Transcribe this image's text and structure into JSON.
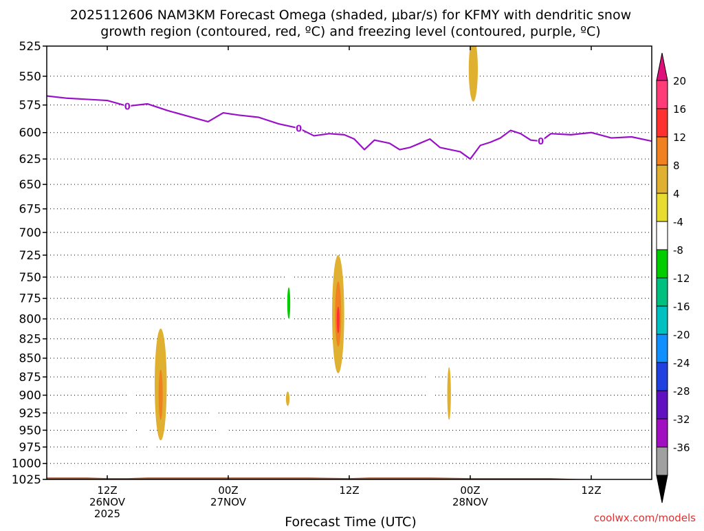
{
  "chart_data": {
    "type": "heatmap",
    "title_lines": [
      "2025112606 NAM3KM Forecast Omega (shaded, μbar/s) for KFMY with dendritic snow",
      "growth region (contoured, red, ºC) and freezing level (contoured, purple, ºC)"
    ],
    "xlabel": "Forecast Time (UTC)",
    "credit": "coolwx.com/models",
    "y_axis": {
      "scale": "pressure-log",
      "range": [
        525,
        1025
      ],
      "ticks": [
        525,
        550,
        575,
        600,
        625,
        650,
        675,
        700,
        725,
        750,
        775,
        800,
        825,
        850,
        875,
        900,
        925,
        950,
        975,
        1000,
        1025
      ],
      "grid": true
    },
    "x_axis": {
      "range_hours": [
        6,
        66
      ],
      "ticks": [
        {
          "hour": 12,
          "lines": [
            "12Z",
            "26NOV",
            "2025"
          ]
        },
        {
          "hour": 24,
          "lines": [
            "00Z",
            "27NOV"
          ]
        },
        {
          "hour": 36,
          "lines": [
            "12Z",
            ""
          ]
        },
        {
          "hour": 48,
          "lines": [
            "00Z",
            "28NOV"
          ]
        },
        {
          "hour": 60,
          "lines": [
            "12Z",
            ""
          ]
        }
      ],
      "grid": false
    },
    "colorbar": {
      "labels": [
        "20",
        "16",
        "12",
        "8",
        "4",
        "-4",
        "-8",
        "-12",
        "-16",
        "-20",
        "-24",
        "-28",
        "-32",
        "-36"
      ],
      "bins": [
        "#ff3c78",
        "#ff3030",
        "#f08020",
        "#e0b030",
        "#e8dc30",
        "#ffffff",
        "#00cc00",
        "#00c080",
        "#00c0c0",
        "#1090ff",
        "#2040e0",
        "#6010c0",
        "#a010c0",
        "#a0a0a0"
      ],
      "over_color": "#e0107a",
      "under_color": "#000000"
    },
    "freezing_level": {
      "color": "#9a10c8",
      "label": "0",
      "label_hours": [
        14,
        31,
        55
      ],
      "points": [
        [
          6,
          567
        ],
        [
          8,
          569
        ],
        [
          10,
          570
        ],
        [
          12,
          571
        ],
        [
          14,
          576
        ],
        [
          16,
          574
        ],
        [
          18,
          580
        ],
        [
          20,
          585
        ],
        [
          22,
          590
        ],
        [
          23.5,
          582
        ],
        [
          25,
          584
        ],
        [
          27,
          586
        ],
        [
          29,
          592
        ],
        [
          31,
          596
        ],
        [
          32.5,
          603
        ],
        [
          34,
          601
        ],
        [
          35.5,
          602
        ],
        [
          36.5,
          606
        ],
        [
          37.5,
          616
        ],
        [
          38.5,
          607
        ],
        [
          40,
          610
        ],
        [
          41,
          616
        ],
        [
          42,
          614
        ],
        [
          43,
          610
        ],
        [
          44,
          606
        ],
        [
          45,
          614
        ],
        [
          47,
          618
        ],
        [
          48,
          625
        ],
        [
          49,
          612
        ],
        [
          50,
          609
        ],
        [
          51,
          605
        ],
        [
          52,
          598
        ],
        [
          53,
          601
        ],
        [
          54,
          607
        ],
        [
          55,
          608
        ],
        [
          56,
          601
        ],
        [
          58,
          602
        ],
        [
          60,
          600
        ],
        [
          62,
          605
        ],
        [
          64,
          604
        ],
        [
          66,
          608
        ]
      ]
    },
    "omega_features": [
      {
        "hour": 14.4,
        "p_top": 875,
        "p_bot": 980,
        "half_width_h": 0.45,
        "value": -6
      },
      {
        "hour": 17.3,
        "p_top": 812,
        "p_bot": 965,
        "half_width_h": 0.6,
        "value": 6
      },
      {
        "hour": 17.3,
        "p_top": 865,
        "p_bot": 935,
        "half_width_h": 0.2,
        "value": 9
      },
      {
        "hour": 22.5,
        "p_top": 910,
        "p_bot": 945,
        "half_width_h": 0.3,
        "value": -6
      },
      {
        "hour": 30,
        "p_top": 738,
        "p_bot": 822,
        "half_width_h": 0.38,
        "value": -6
      },
      {
        "hour": 30,
        "p_top": 762,
        "p_bot": 800,
        "half_width_h": 0.15,
        "value": -11
      },
      {
        "hour": 29.9,
        "p_top": 895,
        "p_bot": 915,
        "half_width_h": 0.18,
        "value": 6
      },
      {
        "hour": 31.1,
        "p_top": 618,
        "p_bot": 658,
        "half_width_h": 0.18,
        "value": -6
      },
      {
        "hour": 34.9,
        "p_top": 725,
        "p_bot": 870,
        "half_width_h": 0.6,
        "value": 6
      },
      {
        "hour": 34.9,
        "p_top": 755,
        "p_bot": 835,
        "half_width_h": 0.3,
        "value": 10
      },
      {
        "hour": 34.9,
        "p_top": 785,
        "p_bot": 818,
        "half_width_h": 0.14,
        "value": 13
      },
      {
        "hour": 44,
        "p_top": 860,
        "p_bot": 925,
        "half_width_h": 0.35,
        "value": -6
      },
      {
        "hour": 45.9,
        "p_top": 862,
        "p_bot": 935,
        "half_width_h": 0.18,
        "value": 6
      },
      {
        "hour": 48.3,
        "p_top": 518,
        "p_bot": 572,
        "half_width_h": 0.45,
        "value": 6
      }
    ],
    "omega_blocks": [
      {
        "h0": 16.0,
        "h1": 16.9,
        "p0": 960,
        "p1": 985,
        "value": -6
      },
      {
        "h0": 15.0,
        "h1": 16.2,
        "p0": 930,
        "p1": 965,
        "value": -6
      },
      {
        "h0": 22.8,
        "h1": 23.8,
        "p0": 948,
        "p1": 962,
        "value": -6
      }
    ],
    "terrain": {
      "color": "#a0522d",
      "points": [
        [
          6,
          1022
        ],
        [
          10,
          1022
        ],
        [
          12,
          1023
        ],
        [
          14,
          1023
        ],
        [
          16,
          1022
        ],
        [
          20,
          1022
        ],
        [
          24,
          1022
        ],
        [
          28,
          1022
        ],
        [
          32,
          1022
        ],
        [
          36,
          1023
        ],
        [
          38,
          1022
        ],
        [
          40,
          1022
        ],
        [
          44,
          1022
        ],
        [
          48,
          1023
        ],
        [
          52,
          1023
        ],
        [
          56,
          1023
        ],
        [
          58,
          1024
        ],
        [
          60,
          1025
        ],
        [
          62,
          1027
        ],
        [
          63,
          1027
        ],
        [
          64,
          1025
        ],
        [
          66,
          1025
        ]
      ]
    }
  }
}
